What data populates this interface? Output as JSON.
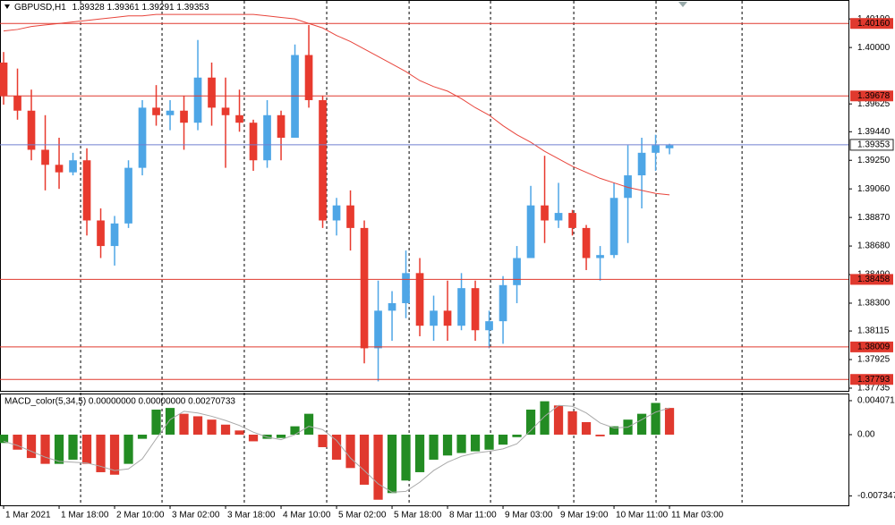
{
  "chart_data": [
    {
      "type": "candlestick",
      "title": "GBPUSD,H1",
      "last_bar": [
        1.39328,
        1.39361,
        1.39291,
        1.39353
      ],
      "up_color": "#4ea6e6",
      "down_color": "#e83a2e",
      "ma_color": "#e8453c",
      "open": [
        1.399,
        1.3968,
        1.3958,
        1.3932,
        1.3922,
        1.3917,
        1.3925,
        1.3885,
        1.3868,
        1.3883,
        1.392,
        1.396,
        1.3955,
        1.3958,
        1.395,
        1.398,
        1.396,
        1.3955,
        1.395,
        1.3925,
        1.3955,
        1.394,
        1.3995,
        1.3965,
        1.3885,
        1.3895,
        1.388,
        1.38,
        1.3825,
        1.383,
        1.385,
        1.3815,
        1.3825,
        1.3815,
        1.384,
        1.3812,
        1.3818,
        1.3842,
        1.386,
        1.3895,
        1.3885,
        1.389,
        1.388,
        1.386,
        1.3862,
        1.39,
        1.3915,
        1.393,
        1.3933
      ],
      "high": [
        1.3997,
        1.3986,
        1.3972,
        1.3955,
        1.394,
        1.393,
        1.3933,
        1.3893,
        1.3888,
        1.3925,
        1.3965,
        1.3975,
        1.3965,
        1.3968,
        1.4005,
        1.399,
        1.398,
        1.3972,
        1.3952,
        1.3965,
        1.3958,
        1.4002,
        1.4015,
        1.3968,
        1.39,
        1.3905,
        1.3885,
        1.3845,
        1.3838,
        1.3865,
        1.386,
        1.3835,
        1.3845,
        1.385,
        1.3845,
        1.3825,
        1.3848,
        1.3868,
        1.3908,
        1.3928,
        1.391,
        1.3892,
        1.3882,
        1.3868,
        1.391,
        1.3935,
        1.394,
        1.3942,
        1.3936
      ],
      "low": [
        1.3962,
        1.3952,
        1.3925,
        1.3905,
        1.3906,
        1.3915,
        1.3875,
        1.386,
        1.3855,
        1.388,
        1.3915,
        1.3948,
        1.3945,
        1.3932,
        1.3945,
        1.3948,
        1.392,
        1.3944,
        1.3918,
        1.392,
        1.3925,
        1.394,
        1.396,
        1.388,
        1.3875,
        1.3865,
        1.379,
        1.3778,
        1.3805,
        1.382,
        1.3808,
        1.3805,
        1.3805,
        1.3812,
        1.3805,
        1.38,
        1.3803,
        1.383,
        1.386,
        1.387,
        1.388,
        1.3875,
        1.3852,
        1.3845,
        1.386,
        1.387,
        1.3893,
        1.3918,
        1.3929
      ],
      "close": [
        1.3968,
        1.3958,
        1.3932,
        1.3922,
        1.3917,
        1.3925,
        1.3885,
        1.3868,
        1.3883,
        1.392,
        1.396,
        1.3955,
        1.3958,
        1.395,
        1.398,
        1.396,
        1.3955,
        1.395,
        1.3925,
        1.3955,
        1.394,
        1.3995,
        1.3965,
        1.3885,
        1.3895,
        1.388,
        1.38,
        1.3825,
        1.383,
        1.385,
        1.3815,
        1.3825,
        1.3815,
        1.384,
        1.3812,
        1.3818,
        1.3842,
        1.386,
        1.3895,
        1.3885,
        1.389,
        1.388,
        1.386,
        1.3862,
        1.39,
        1.3915,
        1.393,
        1.3935,
        1.3935
      ],
      "ma": [
        1.4011,
        1.4012,
        1.4014,
        1.4015,
        1.4016,
        1.4017,
        1.4018,
        1.4019,
        1.402,
        1.4021,
        1.4021,
        1.4022,
        1.4022,
        1.4022,
        1.4022,
        1.4022,
        1.4022,
        1.4022,
        1.4022,
        1.4021,
        1.402,
        1.4019,
        1.4016,
        1.4013,
        1.4008,
        1.4004,
        1.3999,
        1.3994,
        1.3989,
        1.3984,
        1.3978,
        1.3974,
        1.3971,
        1.3966,
        1.396,
        1.3955,
        1.3948,
        1.3942,
        1.3937,
        1.3931,
        1.3926,
        1.3921,
        1.3917,
        1.3913,
        1.391,
        1.3907,
        1.3905,
        1.3903,
        1.3902
      ],
      "xlim": [
        -0.26,
        60.9
      ],
      "xticks": [
        {
          "value": 0,
          "label": "1 Mar 2021"
        },
        {
          "value": 4,
          "label": "1 Mar 18:00"
        },
        {
          "value": 8,
          "label": "2 Mar 10:00"
        },
        {
          "value": 12,
          "label": "3 Mar 02:00"
        },
        {
          "value": 16,
          "label": "3 Mar 18:00"
        },
        {
          "value": 20,
          "label": "4 Mar 10:00"
        },
        {
          "value": 24,
          "label": "5 Mar 02:00"
        },
        {
          "value": 28,
          "label": "5 Mar 18:00"
        },
        {
          "value": 32,
          "label": "8 Mar 11:00"
        },
        {
          "value": 36,
          "label": "9 Mar 03:00"
        },
        {
          "value": 40,
          "label": "9 Mar 19:00"
        },
        {
          "value": 44,
          "label": "10 Mar 11:00"
        },
        {
          "value": 48,
          "label": "11 Mar 03:00"
        }
      ],
      "xgrid": [
        5.55,
        11.42,
        17.35,
        23.29,
        29.23,
        35.1,
        41.1,
        47.03,
        53.23
      ],
      "ylim": [
        1.37717,
        1.40304
      ],
      "yticks": [
        {
          "value": 1.4019,
          "label": "1.40190"
        },
        {
          "value": 1.4,
          "label": "1.40000"
        },
        1.39625,
        {
          "value": 1.3944,
          "label": "1.39440"
        },
        {
          "value": 1.3925,
          "label": "1.39250"
        },
        {
          "value": 1.3906,
          "label": "1.39060"
        },
        {
          "value": 1.3887,
          "label": "1.38870"
        },
        {
          "value": 1.3868,
          "label": "1.38680"
        },
        {
          "value": 1.3849,
          "label": "1.38490"
        },
        {
          "value": 1.383,
          "label": "1.38300"
        },
        1.38115,
        1.37925,
        1.37735
      ],
      "levels": [
        {
          "value": 1.4016,
          "label": "1.40160"
        },
        {
          "value": 1.39678,
          "label": "1.39678"
        },
        {
          "value": 1.38458,
          "label": "1.38458"
        },
        {
          "value": 1.38009,
          "label": "1.38009"
        },
        {
          "value": 1.37793,
          "label": "1.37793"
        }
      ],
      "level_color": "#e0392e",
      "last_price": {
        "value": 1.39353,
        "label": "1.39353"
      },
      "last_price_color": "#6f7fd0"
    },
    {
      "type": "bar",
      "title": "MACD_color(5,34,5) 0.00000000 0.00000000 0.00270733",
      "up_color": "#238c23",
      "down_color": "#e0392e",
      "signal_color": "#a9a9a9",
      "values": [
        -0.001,
        -0.0018,
        -0.0028,
        -0.0035,
        -0.0035,
        -0.003,
        -0.0035,
        -0.0045,
        -0.0048,
        -0.0035,
        -0.0005,
        0.003,
        0.0032,
        0.0025,
        0.0022,
        0.0018,
        0.0012,
        0.0005,
        -0.0008,
        -0.0005,
        -0.0004,
        0.001,
        0.0025,
        -0.0015,
        -0.003,
        -0.004,
        -0.006,
        -0.0078,
        -0.007,
        -0.0055,
        -0.0045,
        -0.003,
        -0.0025,
        -0.0022,
        -0.002,
        -0.0018,
        -0.0012,
        -0.0003,
        0.003,
        0.004,
        0.0035,
        0.0028,
        0.0015,
        -0.0002,
        0.001,
        0.0018,
        0.0025,
        0.0038,
        0.0032
      ],
      "signal": [
        -0.0008,
        -0.0013,
        -0.002,
        -0.0027,
        -0.0032,
        -0.0033,
        -0.0034,
        -0.0038,
        -0.0043,
        -0.0041,
        -0.0029,
        -0.0005,
        0.0018,
        0.0028,
        0.0026,
        0.0022,
        0.0017,
        0.0011,
        0.0003,
        -0.0003,
        -0.0006,
        0.0,
        0.001,
        0.0006,
        -0.0007,
        -0.0028,
        -0.0043,
        -0.0059,
        -0.0069,
        -0.0068,
        -0.0057,
        -0.0043,
        -0.0033,
        -0.0026,
        -0.0022,
        -0.002,
        -0.0017,
        -0.0011,
        0.0005,
        0.0022,
        0.0035,
        0.0034,
        0.0026,
        0.0014,
        0.0008,
        0.0009,
        0.0018,
        0.0027,
        0.0032
      ],
      "ylim": [
        -0.00847,
        0.00482
      ],
      "yticks": [
        0.0040719,
        {
          "value": 0,
          "label": "0.00"
        },
        -0.0073471
      ]
    }
  ]
}
